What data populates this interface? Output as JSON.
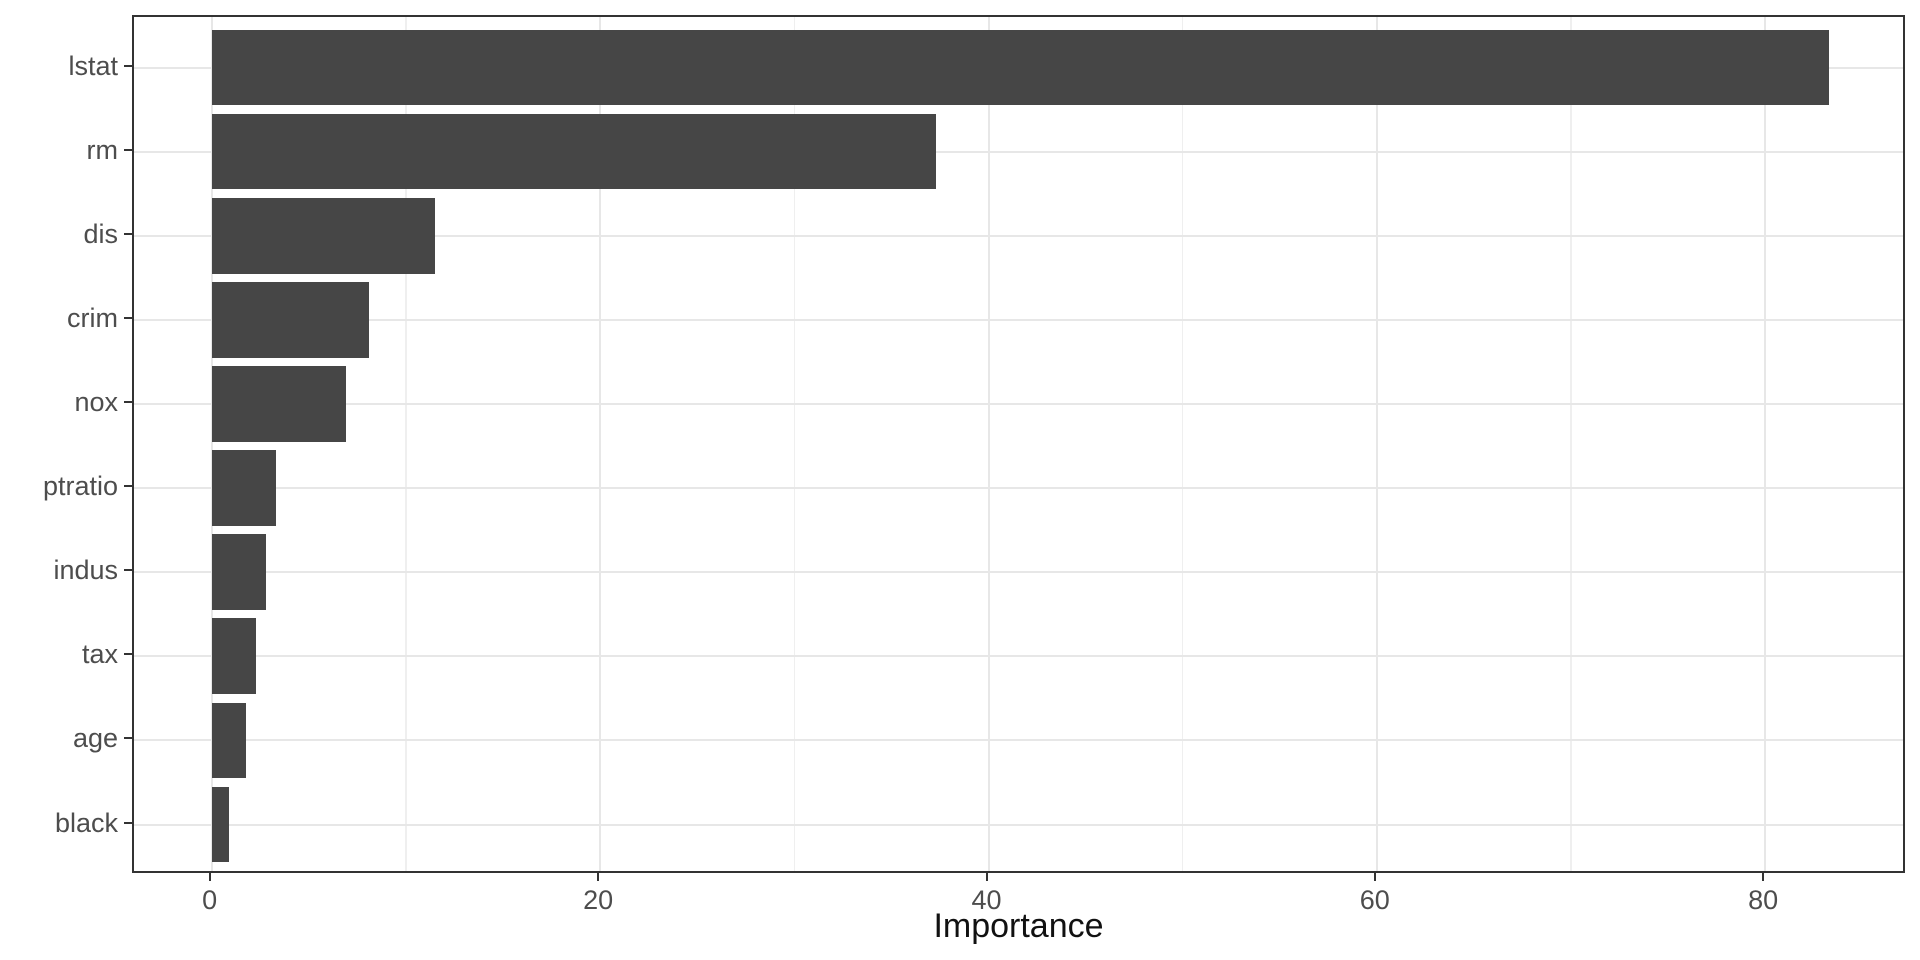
{
  "figure": {
    "background": "#ffffff"
  },
  "chart_data": {
    "type": "bar",
    "orientation": "horizontal",
    "title": "",
    "xlabel": "Importance",
    "ylabel": "",
    "categories": [
      "lstat",
      "rm",
      "dis",
      "crim",
      "nox",
      "ptratio",
      "indus",
      "tax",
      "age",
      "black"
    ],
    "values": [
      83.3,
      37.3,
      11.5,
      8.1,
      6.9,
      3.3,
      2.8,
      2.3,
      1.75,
      0.9
    ],
    "xlim": [
      -4.0,
      87.3
    ],
    "x_major_ticks": [
      0,
      20,
      40,
      60,
      80
    ],
    "x_tick_labels": [
      "0",
      "20",
      "40",
      "60",
      "80"
    ],
    "x_minor_gridlines": [
      10,
      30,
      50,
      70
    ],
    "grid": "vertical major+minor, horizontal major at category centers",
    "legend_position": "none",
    "style": {
      "bar_fill": "#464646",
      "panel_border": "#333333",
      "grid_major": "#e7e7e7",
      "grid_minor": "#efefef",
      "tick_mark": "#333333",
      "tick_label_color": "#4d4d4d",
      "axis_title_color": "#111111"
    }
  }
}
